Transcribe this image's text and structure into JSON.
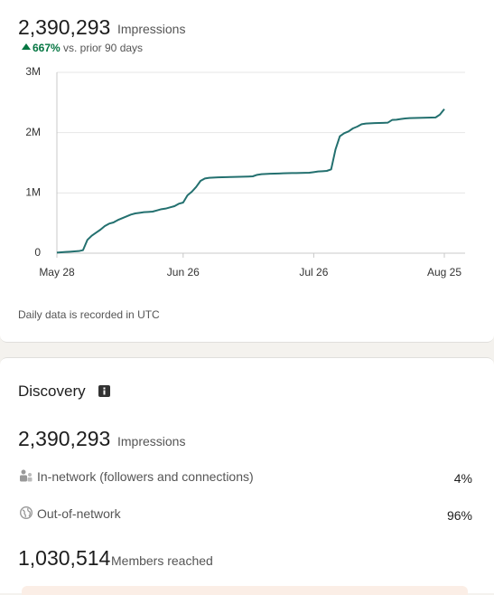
{
  "header": {
    "impressions": "2,390,293",
    "impressions_label": "Impressions",
    "change": "667%",
    "change_text": "vs. prior 90 days"
  },
  "chart_data": {
    "type": "line",
    "categories": [
      "May 28",
      null,
      null,
      null,
      null,
      null,
      null,
      null,
      null,
      null,
      null,
      null,
      null,
      null,
      null,
      null,
      null,
      null,
      null,
      null,
      null,
      null,
      null,
      null,
      null,
      null,
      null,
      null,
      null,
      "Jun 26",
      null,
      null,
      null,
      null,
      null,
      null,
      null,
      null,
      null,
      null,
      null,
      null,
      null,
      null,
      null,
      null,
      null,
      null,
      null,
      null,
      null,
      null,
      null,
      null,
      null,
      null,
      null,
      null,
      null,
      "Jul 26",
      null,
      null,
      null,
      null,
      null,
      null,
      null,
      null,
      null,
      null,
      null,
      null,
      null,
      null,
      null,
      null,
      null,
      null,
      null,
      null,
      null,
      null,
      null,
      null,
      null,
      null,
      null,
      null,
      null,
      "Aug 25"
    ],
    "values": [
      10000,
      15000,
      20000,
      25000,
      30000,
      35000,
      50000,
      220000,
      290000,
      340000,
      390000,
      450000,
      490000,
      510000,
      550000,
      580000,
      610000,
      640000,
      660000,
      670000,
      680000,
      685000,
      690000,
      710000,
      730000,
      740000,
      760000,
      780000,
      820000,
      840000,
      960000,
      1020000,
      1100000,
      1200000,
      1240000,
      1250000,
      1255000,
      1258000,
      1260000,
      1262000,
      1264000,
      1266000,
      1268000,
      1270000,
      1272000,
      1275000,
      1300000,
      1310000,
      1315000,
      1318000,
      1320000,
      1322000,
      1325000,
      1327000,
      1329000,
      1330000,
      1332000,
      1333000,
      1335000,
      1345000,
      1355000,
      1360000,
      1365000,
      1390000,
      1720000,
      1940000,
      1990000,
      2020000,
      2070000,
      2100000,
      2140000,
      2150000,
      2155000,
      2158000,
      2160000,
      2162000,
      2165000,
      2210000,
      2215000,
      2225000,
      2235000,
      2240000,
      2243000,
      2245000,
      2247000,
      2248000,
      2250000,
      2252000,
      2300000,
      2390293
    ],
    "color": "#23706f",
    "ylim": [
      0,
      3000000
    ],
    "yticks": [
      0,
      {
        "value": 1000000,
        "label": "1M"
      },
      {
        "value": 2000000,
        "label": "2M"
      },
      {
        "value": 3000000,
        "label": "3M"
      }
    ],
    "grid": true
  },
  "note": "Daily data is recorded in UTC",
  "discovery": {
    "title": "Discovery",
    "impressions": "2,390,293",
    "impressions_label": "Impressions",
    "rows": [
      {
        "label": "In-network (followers and connections)",
        "value": "4%"
      },
      {
        "label": "Out-of-network",
        "value": "96%"
      }
    ],
    "members": "1,030,514",
    "members_label": "Members reached"
  }
}
